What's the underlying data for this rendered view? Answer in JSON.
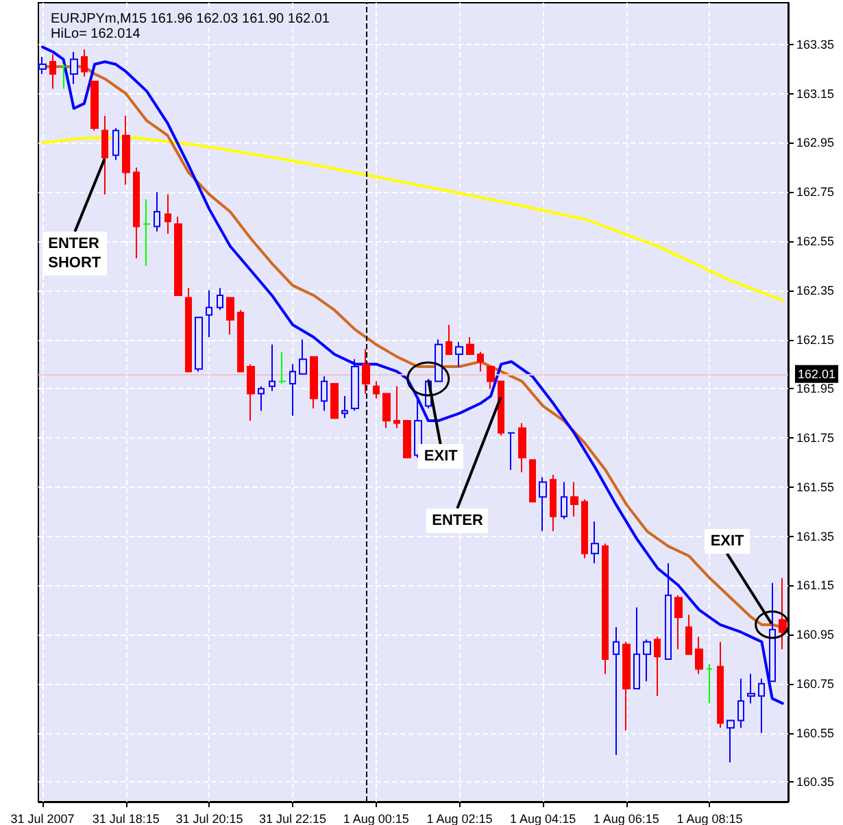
{
  "chart_data": {
    "type": "candlestick",
    "title": "EURJPYm,M15 161.96 162.03 161.90 162.01",
    "subtitle": "HiLo= 162.014",
    "x": [
      "2007-07-31T16:15",
      "2007-07-31T16:30",
      "2007-07-31T16:45",
      "2007-07-31T17:00",
      "2007-07-31T17:15",
      "2007-07-31T17:30",
      "2007-07-31T17:45",
      "2007-07-31T18:00",
      "2007-07-31T18:15",
      "2007-07-31T18:30",
      "2007-07-31T18:45",
      "2007-07-31T19:00",
      "2007-07-31T19:15",
      "2007-07-31T19:30",
      "2007-07-31T19:45",
      "2007-07-31T20:00",
      "2007-07-31T20:15",
      "2007-07-31T20:30",
      "2007-07-31T20:45",
      "2007-07-31T21:00",
      "2007-07-31T21:15",
      "2007-07-31T21:30",
      "2007-07-31T21:45",
      "2007-07-31T22:00",
      "2007-07-31T22:15",
      "2007-07-31T22:30",
      "2007-07-31T22:45",
      "2007-07-31T23:00",
      "2007-07-31T23:15",
      "2007-07-31T23:30",
      "2007-07-31T23:45",
      "2007-08-01T00:00",
      "2007-08-01T00:15",
      "2007-08-01T00:30",
      "2007-08-01T00:45",
      "2007-08-01T01:00",
      "2007-08-01T01:15",
      "2007-08-01T01:30",
      "2007-08-01T01:45",
      "2007-08-01T02:00",
      "2007-08-01T02:15",
      "2007-08-01T02:30",
      "2007-08-01T02:45",
      "2007-08-01T03:00",
      "2007-08-01T03:15",
      "2007-08-01T03:30",
      "2007-08-01T03:45",
      "2007-08-01T04:00",
      "2007-08-01T04:15",
      "2007-08-01T04:30",
      "2007-08-01T04:45",
      "2007-08-01T05:00",
      "2007-08-01T05:15",
      "2007-08-01T05:30",
      "2007-08-01T05:45",
      "2007-08-01T06:00",
      "2007-08-01T06:15",
      "2007-08-01T06:30",
      "2007-08-01T06:45",
      "2007-08-01T07:00",
      "2007-08-01T07:15",
      "2007-08-01T07:30",
      "2007-08-01T07:45",
      "2007-08-01T08:00",
      "2007-08-01T08:15",
      "2007-08-01T08:30",
      "2007-08-01T08:45",
      "2007-08-01T09:00",
      "2007-08-01T09:15",
      "2007-08-01T09:30",
      "2007-08-01T09:45",
      "2007-08-01T10:00"
    ],
    "ohlc": [
      [
        163.25,
        163.3,
        163.23,
        163.27
      ],
      [
        163.28,
        163.31,
        163.17,
        163.23
      ],
      [
        163.26,
        163.27,
        163.17,
        163.26
      ],
      [
        163.23,
        163.32,
        163.19,
        163.29
      ],
      [
        163.3,
        163.33,
        163.22,
        163.24
      ],
      [
        163.2,
        163.2,
        163.0,
        163.01
      ],
      [
        163.0,
        163.06,
        162.74,
        162.89
      ],
      [
        162.9,
        163.01,
        162.88,
        163.0
      ],
      [
        162.98,
        163.06,
        162.78,
        162.83
      ],
      [
        162.83,
        162.85,
        162.48,
        162.61
      ],
      [
        162.62,
        162.72,
        162.45,
        162.62
      ],
      [
        162.61,
        162.75,
        162.59,
        162.67
      ],
      [
        162.66,
        162.74,
        162.58,
        162.63
      ],
      [
        162.62,
        162.65,
        162.33,
        162.33
      ],
      [
        162.32,
        162.36,
        162.02,
        162.02
      ],
      [
        162.03,
        162.24,
        162.02,
        162.24
      ],
      [
        162.25,
        162.35,
        162.16,
        162.28
      ],
      [
        162.28,
        162.36,
        162.27,
        162.33
      ],
      [
        162.32,
        162.32,
        162.17,
        162.23
      ],
      [
        162.26,
        162.27,
        162.02,
        162.02
      ],
      [
        162.04,
        162.05,
        161.82,
        161.93
      ],
      [
        161.93,
        161.96,
        161.86,
        161.95
      ],
      [
        161.96,
        162.13,
        161.94,
        161.98
      ],
      [
        161.98,
        162.1,
        161.97,
        161.98
      ],
      [
        161.97,
        162.05,
        161.84,
        162.02
      ],
      [
        162.01,
        162.15,
        162.01,
        162.07
      ],
      [
        162.08,
        162.08,
        161.87,
        161.91
      ],
      [
        161.9,
        162.0,
        161.86,
        161.98
      ],
      [
        161.97,
        161.97,
        161.83,
        161.83
      ],
      [
        161.85,
        161.92,
        161.83,
        161.86
      ],
      [
        161.87,
        162.07,
        161.86,
        162.04
      ],
      [
        162.05,
        162.11,
        161.93,
        161.97
      ],
      [
        161.96,
        161.98,
        161.91,
        161.93
      ],
      [
        161.93,
        161.93,
        161.79,
        161.82
      ],
      [
        161.82,
        161.96,
        161.79,
        161.81
      ],
      [
        161.82,
        161.82,
        161.67,
        161.67
      ],
      [
        161.68,
        161.91,
        161.67,
        161.82
      ],
      [
        161.88,
        161.99,
        161.87,
        161.98
      ],
      [
        161.98,
        162.15,
        161.98,
        162.13
      ],
      [
        162.14,
        162.21,
        162.09,
        162.09
      ],
      [
        162.09,
        162.14,
        162.04,
        162.12
      ],
      [
        162.13,
        162.16,
        162.09,
        162.09
      ],
      [
        162.09,
        162.1,
        162.02,
        162.06
      ],
      [
        162.04,
        162.04,
        161.95,
        161.98
      ],
      [
        161.98,
        161.98,
        161.76,
        161.77
      ],
      [
        161.77,
        161.77,
        161.62,
        161.77
      ],
      [
        161.79,
        161.81,
        161.61,
        161.67
      ],
      [
        161.66,
        161.66,
        161.49,
        161.49
      ],
      [
        161.51,
        161.59,
        161.37,
        161.57
      ],
      [
        161.58,
        161.6,
        161.37,
        161.43
      ],
      [
        161.43,
        161.57,
        161.42,
        161.51
      ],
      [
        161.51,
        161.57,
        161.43,
        161.48
      ],
      [
        161.49,
        161.5,
        161.26,
        161.28
      ],
      [
        161.28,
        161.41,
        161.24,
        161.32
      ],
      [
        161.31,
        161.32,
        160.79,
        160.85
      ],
      [
        160.87,
        160.98,
        160.46,
        160.92
      ],
      [
        160.91,
        160.92,
        160.56,
        160.73
      ],
      [
        160.73,
        161.06,
        160.73,
        160.87
      ],
      [
        160.87,
        160.93,
        160.76,
        160.92
      ],
      [
        160.93,
        160.94,
        160.7,
        160.86
      ],
      [
        160.85,
        161.24,
        160.85,
        161.11
      ],
      [
        161.1,
        161.11,
        160.89,
        161.02
      ],
      [
        160.98,
        161.03,
        160.87,
        160.87
      ],
      [
        160.89,
        160.94,
        160.79,
        160.81
      ],
      [
        160.81,
        160.83,
        160.67,
        160.81
      ],
      [
        160.82,
        160.92,
        160.57,
        160.59
      ],
      [
        160.57,
        160.6,
        160.43,
        160.6
      ],
      [
        160.6,
        160.77,
        160.57,
        160.68
      ],
      [
        160.7,
        160.79,
        160.67,
        160.71
      ],
      [
        160.7,
        160.77,
        160.55,
        160.75
      ],
      [
        160.76,
        161.16,
        160.76,
        160.97
      ],
      [
        161.01,
        161.18,
        160.89,
        160.96
      ]
    ],
    "colors": [
      "#0000ff",
      "#ff0000",
      "#00ff00",
      "#0000ff",
      "#ff0000",
      "#ff0000",
      "#ff0000",
      "#0000ff",
      "#ff0000",
      "#ff0000",
      "#00ff00",
      "#0000ff",
      "#ff0000",
      "#ff0000",
      "#ff0000",
      "#0000ff",
      "#0000ff",
      "#0000ff",
      "#ff0000",
      "#ff0000",
      "#ff0000",
      "#0000ff",
      "#0000ff",
      "#00ff00",
      "#0000ff",
      "#0000ff",
      "#ff0000",
      "#0000ff",
      "#ff0000",
      "#0000ff",
      "#0000ff",
      "#ff0000",
      "#ff0000",
      "#ff0000",
      "#ff0000",
      "#ff0000",
      "#0000ff",
      "#0000ff",
      "#0000ff",
      "#ff0000",
      "#0000ff",
      "#ff0000",
      "#ff0000",
      "#ff0000",
      "#ff0000",
      "#0000ff",
      "#ff0000",
      "#ff0000",
      "#0000ff",
      "#ff0000",
      "#0000ff",
      "#ff0000",
      "#ff0000",
      "#0000ff",
      "#ff0000",
      "#0000ff",
      "#ff0000",
      "#0000ff",
      "#0000ff",
      "#ff0000",
      "#0000ff",
      "#ff0000",
      "#ff0000",
      "#ff0000",
      "#00ff00",
      "#ff0000",
      "#0000ff",
      "#0000ff",
      "#0000ff",
      "#0000ff",
      "#0000ff",
      "#ff0000"
    ],
    "series": [
      {
        "type": "line",
        "color": "#ffff00",
        "x": [
          "2007-07-31T16:15",
          "2007-07-31T17:15",
          "2007-07-31T18:30",
          "2007-07-31T20:00",
          "2007-07-31T22:30",
          "2007-08-01T01:30",
          "2007-08-01T03:00",
          "2007-08-01T05:15",
          "2007-08-01T07:00",
          "2007-08-01T08:45",
          "2007-08-01T10:00"
        ],
        "values": [
          162.95,
          162.97,
          162.97,
          162.94,
          162.87,
          162.77,
          162.72,
          162.64,
          162.53,
          162.39,
          162.31
        ]
      },
      {
        "type": "line",
        "color": "#d2691e",
        "x": [
          "2007-07-31T16:15",
          "2007-07-31T17:15",
          "2007-07-31T17:30",
          "2007-07-31T17:45",
          "2007-07-31T18:15",
          "2007-07-31T18:45",
          "2007-07-31T19:15",
          "2007-07-31T19:45",
          "2007-07-31T20:15",
          "2007-07-31T20:45",
          "2007-07-31T21:15",
          "2007-07-31T21:45",
          "2007-07-31T22:15",
          "2007-07-31T22:45",
          "2007-07-31T23:15",
          "2007-07-31T23:45",
          "2007-08-01T00:15",
          "2007-08-01T00:45",
          "2007-08-01T01:15",
          "2007-08-01T01:45",
          "2007-08-01T02:15",
          "2007-08-01T02:45",
          "2007-08-01T03:15",
          "2007-08-01T03:45",
          "2007-08-01T04:15",
          "2007-08-01T04:45",
          "2007-08-01T05:15",
          "2007-08-01T05:45",
          "2007-08-01T06:15",
          "2007-08-01T06:45",
          "2007-08-01T07:15",
          "2007-08-01T07:45",
          "2007-08-01T08:15",
          "2007-08-01T08:45",
          "2007-08-01T09:15",
          "2007-08-01T09:30",
          "2007-08-01T09:45",
          "2007-08-01T10:00"
        ],
        "values": [
          163.26,
          163.26,
          163.23,
          163.21,
          163.15,
          163.04,
          162.98,
          162.83,
          162.74,
          162.67,
          162.56,
          162.46,
          162.37,
          162.33,
          162.27,
          162.19,
          162.13,
          162.08,
          162.04,
          162.04,
          162.04,
          162.06,
          162.02,
          161.98,
          161.88,
          161.82,
          161.73,
          161.62,
          161.48,
          161.37,
          161.31,
          161.27,
          161.18,
          161.1,
          161.02,
          160.99,
          160.99,
          160.98
        ]
      },
      {
        "type": "line",
        "color": "#0000ff",
        "x": [
          "2007-07-31T16:15",
          "2007-07-31T16:30",
          "2007-07-31T16:45",
          "2007-07-31T17:00",
          "2007-07-31T17:15",
          "2007-07-31T17:30",
          "2007-07-31T17:45",
          "2007-07-31T18:00",
          "2007-07-31T18:15",
          "2007-07-31T18:45",
          "2007-07-31T19:15",
          "2007-07-31T19:45",
          "2007-07-31T20:15",
          "2007-07-31T20:45",
          "2007-07-31T21:15",
          "2007-07-31T21:45",
          "2007-07-31T22:15",
          "2007-07-31T22:45",
          "2007-07-31T23:15",
          "2007-07-31T23:45",
          "2007-08-01T00:15",
          "2007-08-01T00:45",
          "2007-08-01T01:00",
          "2007-08-01T01:15",
          "2007-08-01T01:30",
          "2007-08-01T01:45",
          "2007-08-01T02:15",
          "2007-08-01T02:45",
          "2007-08-01T03:00",
          "2007-08-01T03:15",
          "2007-08-01T03:30",
          "2007-08-01T04:00",
          "2007-08-01T04:30",
          "2007-08-01T05:00",
          "2007-08-01T05:30",
          "2007-08-01T06:00",
          "2007-08-01T06:30",
          "2007-08-01T07:00",
          "2007-08-01T07:30",
          "2007-08-01T08:00",
          "2007-08-01T08:30",
          "2007-08-01T09:00",
          "2007-08-01T09:15",
          "2007-08-01T09:30",
          "2007-08-01T09:45",
          "2007-08-01T10:00"
        ],
        "values": [
          163.34,
          163.32,
          163.29,
          163.09,
          163.11,
          163.27,
          163.28,
          163.27,
          163.24,
          163.16,
          163.03,
          162.86,
          162.68,
          162.53,
          162.43,
          162.33,
          162.21,
          162.16,
          162.09,
          162.05,
          162.05,
          162.02,
          161.99,
          161.91,
          161.82,
          161.82,
          161.85,
          161.89,
          161.92,
          162.05,
          162.06,
          162.0,
          161.89,
          161.77,
          161.63,
          161.48,
          161.34,
          161.22,
          161.15,
          161.05,
          160.99,
          160.96,
          160.94,
          160.92,
          160.69,
          160.67
        ]
      }
    ],
    "marker": "none",
    "line_style": "solid",
    "grid": true,
    "xlim": [
      "2007-07-31T16:09",
      "2007-08-01T10:08"
    ],
    "xticks": [
      {
        "value": "2007-07-31T16:15",
        "label": "31 Jul 2007"
      },
      {
        "value": "2007-07-31T18:15",
        "label": "31 Jul 18:15"
      },
      {
        "value": "2007-07-31T20:15",
        "label": "31 Jul 20:15"
      },
      {
        "value": "2007-07-31T22:15",
        "label": "31 Jul 22:15"
      },
      {
        "value": "2007-08-01T00:15",
        "label": "1 Aug 00:15"
      },
      {
        "value": "2007-08-01T02:15",
        "label": "1 Aug 02:15"
      },
      {
        "value": "2007-08-01T04:15",
        "label": "1 Aug 04:15"
      },
      {
        "value": "2007-08-01T06:15",
        "label": "1 Aug 06:15"
      },
      {
        "value": "2007-08-01T08:15",
        "label": "1 Aug 08:15"
      }
    ],
    "ylim": [
      160.27,
      163.52
    ],
    "yticks": [
      160.35,
      160.55,
      160.75,
      160.95,
      161.15,
      161.35,
      161.55,
      161.75,
      161.95,
      162.15,
      162.35,
      162.55,
      162.75,
      162.95,
      163.15,
      163.35
    ],
    "ref_lines": [
      {
        "axis": "x",
        "value": "2007-08-01T00:00",
        "color": "#000000",
        "line_style": "dashed"
      },
      {
        "axis": "y",
        "value": 162.01,
        "label": "162.01",
        "color": "#f2c4c4",
        "line_style": "solid"
      }
    ],
    "annotations": [
      {
        "text": "ENTER SHORT",
        "x": "2007-07-31T17:45",
        "y": 162.89
      },
      {
        "text": "EXIT",
        "x": "2007-08-01T01:30",
        "y": 161.99
      },
      {
        "text": "ENTER",
        "x": "2007-08-01T03:15",
        "y": 161.92
      },
      {
        "text": "EXIT",
        "x": "2007-08-01T09:45",
        "y": 160.99
      }
    ]
  }
}
